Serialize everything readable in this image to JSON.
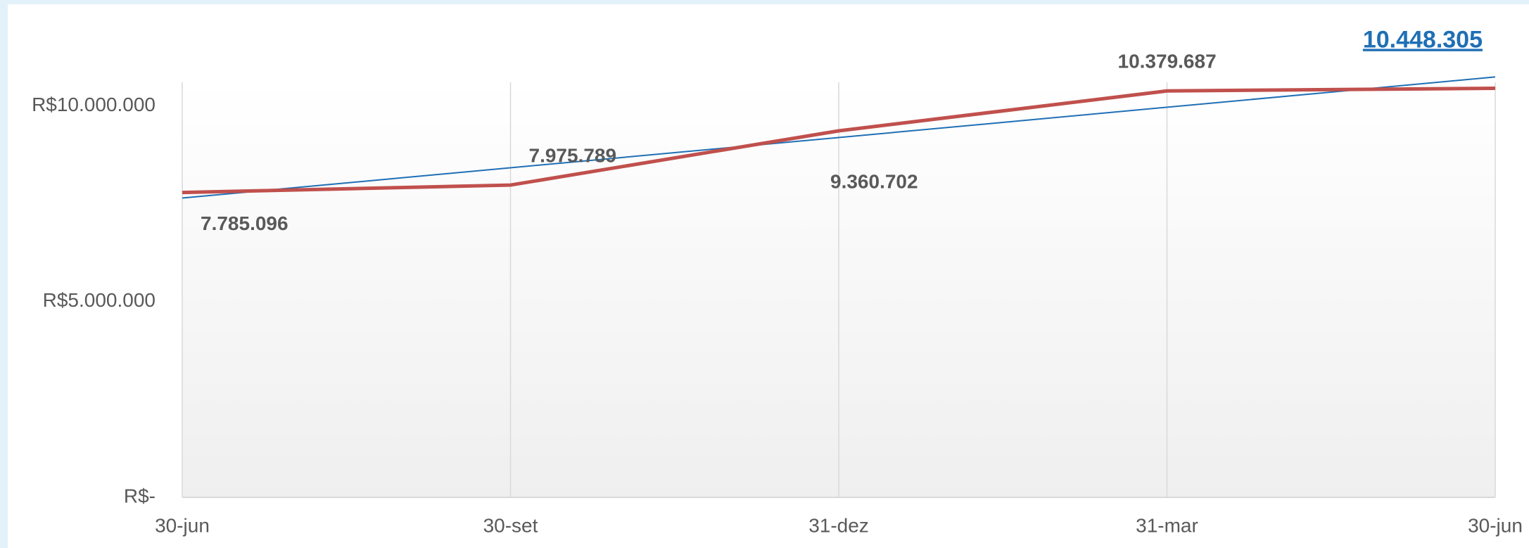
{
  "chart_data": {
    "type": "line",
    "categories": [
      "30-jun",
      "30-set",
      "31-dez",
      "31-mar",
      "30-jun"
    ],
    "series": [
      {
        "color": "#c0504d",
        "values": [
          7785096,
          7975789,
          9360702,
          10379687,
          10448305
        ],
        "value_labels": [
          "7.785.096",
          "7.975.789",
          "9.360.702",
          "10.379.687",
          "10.448.305"
        ]
      }
    ],
    "trendline": "linear",
    "trendline_color": "#1f6fb5",
    "ylim": [
      0,
      10600000
    ],
    "yticks": [
      {
        "value": 0,
        "label": "R$-"
      },
      {
        "value": 5000000,
        "label": "R$5.000.000"
      },
      {
        "value": 10000000,
        "label": "R$10.000.000"
      }
    ],
    "grid": "vertical"
  }
}
